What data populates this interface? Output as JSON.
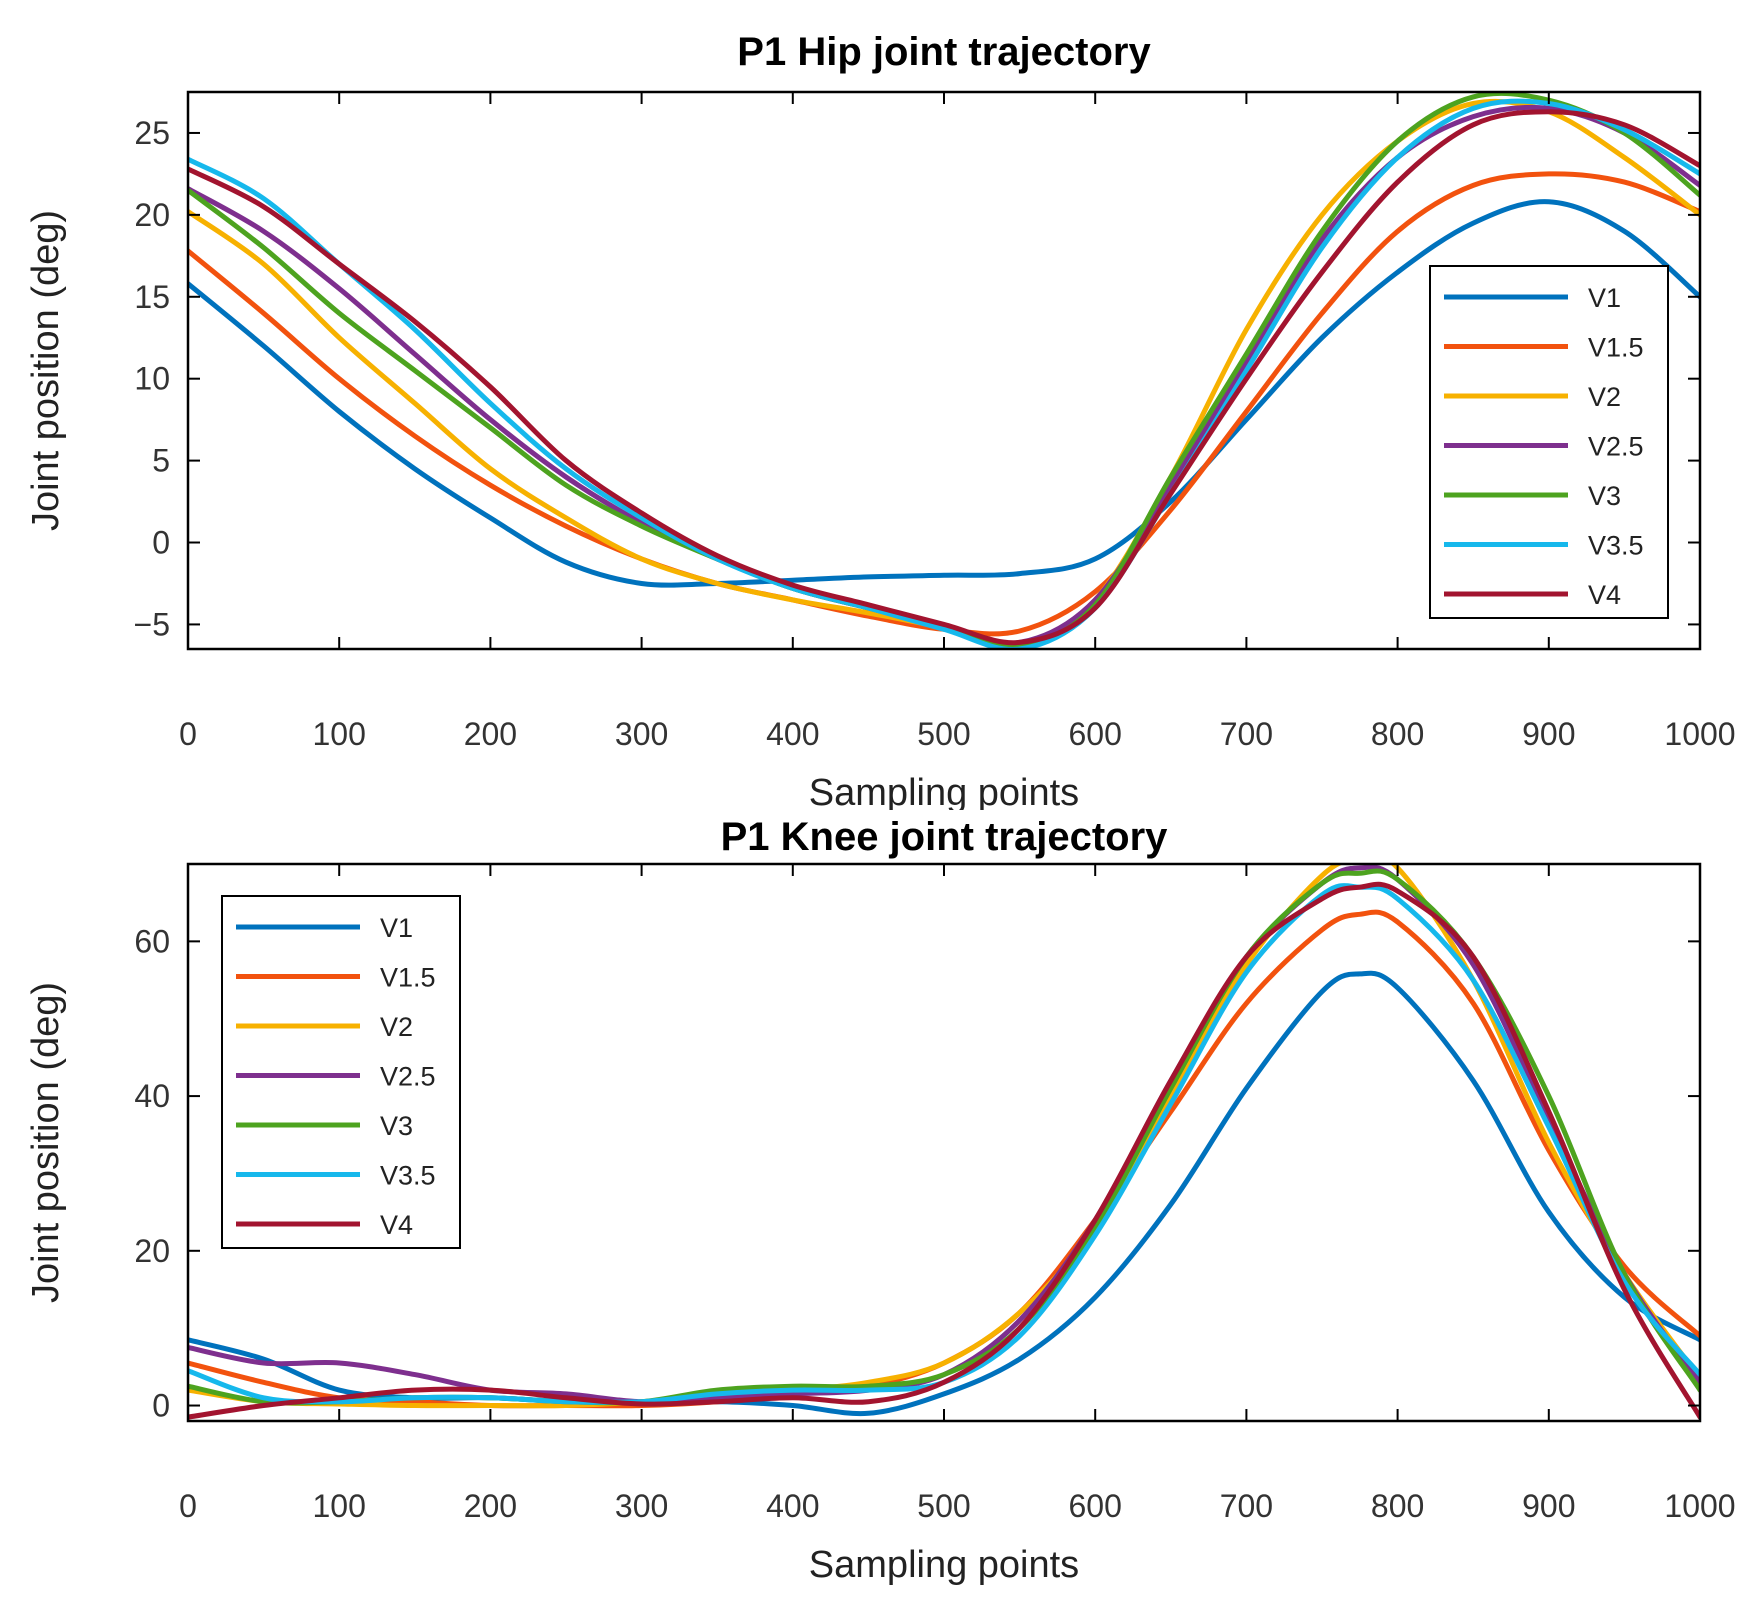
{
  "chart_data": [
    {
      "type": "line",
      "title": "P1 Hip joint trajectory",
      "xlabel": "Sampling points",
      "ylabel": "Joint position (deg)",
      "xlim": [
        0,
        1000
      ],
      "ylim": [
        -6.5,
        27.5
      ],
      "xticks": [
        0,
        100,
        200,
        300,
        400,
        500,
        600,
        700,
        800,
        900,
        1000
      ],
      "xtick_labels": [
        "0",
        "100",
        "200",
        "300",
        "400",
        "500",
        "600",
        "700",
        "800",
        "900",
        "1000"
      ],
      "yticks": [
        -5,
        0,
        5,
        10,
        15,
        20,
        25
      ],
      "ytick_labels": [
        "−5",
        "0",
        "5",
        "10",
        "15",
        "20",
        "25"
      ],
      "legend_position": "right",
      "x": [
        0,
        50,
        100,
        150,
        200,
        250,
        300,
        350,
        400,
        450,
        500,
        550,
        600,
        650,
        700,
        750,
        800,
        850,
        900,
        950,
        1000
      ],
      "series": [
        {
          "name": "V1",
          "color": "#0072BD",
          "values": [
            15.8,
            12,
            8,
            4.5,
            1.5,
            -1.2,
            -2.5,
            -2.5,
            -2.3,
            -2.1,
            -2,
            -1.9,
            -1,
            2.5,
            7.5,
            12.5,
            16.5,
            19.5,
            20.8,
            19,
            15
          ]
        },
        {
          "name": "V1.5",
          "color": "#F2520E",
          "values": [
            17.8,
            14,
            10,
            6.5,
            3.5,
            1,
            -1,
            -2.5,
            -3.5,
            -4.5,
            -5.3,
            -5.4,
            -3,
            2,
            8,
            14,
            19,
            21.8,
            22.5,
            22,
            20.2
          ]
        },
        {
          "name": "V2",
          "color": "#F7B100",
          "values": [
            20.2,
            17,
            12.5,
            8.5,
            4.5,
            1.5,
            -1,
            -2.5,
            -3.5,
            -4.3,
            -5.2,
            -6.2,
            -3.5,
            4,
            13,
            20,
            24.5,
            26.8,
            26.3,
            23.5,
            20
          ]
        },
        {
          "name": "V2.5",
          "color": "#7E2F8E",
          "values": [
            21.6,
            19,
            15.5,
            11.5,
            7.5,
            4,
            1.2,
            -1,
            -2.8,
            -4,
            -5.1,
            -6.1,
            -3.5,
            3.5,
            11,
            18.5,
            23.5,
            26,
            26.5,
            25,
            21.8
          ]
        },
        {
          "name": "V3",
          "color": "#4DA31F",
          "values": [
            21.5,
            18,
            14,
            10.5,
            7,
            3.5,
            1,
            -1,
            -2.8,
            -4,
            -5.2,
            -6.3,
            -3.8,
            4,
            11.5,
            19,
            24.5,
            27.2,
            27,
            25,
            21.2
          ]
        },
        {
          "name": "V3.5",
          "color": "#16B8EC",
          "values": [
            23.4,
            21,
            17,
            13,
            8.5,
            4.5,
            1.5,
            -1,
            -2.8,
            -4,
            -5.3,
            -6.5,
            -4,
            3,
            10.5,
            18,
            23.5,
            26.5,
            26.8,
            25.2,
            22.5
          ]
        },
        {
          "name": "V4",
          "color": "#A2142F",
          "values": [
            22.8,
            20.5,
            17,
            13.5,
            9.5,
            5,
            1.8,
            -0.8,
            -2.6,
            -3.8,
            -5,
            -6.1,
            -4,
            3,
            10,
            16.5,
            22,
            25.5,
            26.3,
            25.5,
            23
          ]
        }
      ]
    },
    {
      "type": "line",
      "title": "P1 Knee joint trajectory",
      "xlabel": "Sampling points",
      "ylabel": "Joint position (deg)",
      "xlim": [
        0,
        1000
      ],
      "ylim": [
        -2,
        70
      ],
      "xticks": [
        0,
        100,
        200,
        300,
        400,
        500,
        600,
        700,
        800,
        900,
        1000
      ],
      "xtick_labels": [
        "0",
        "100",
        "200",
        "300",
        "400",
        "500",
        "600",
        "700",
        "800",
        "900",
        "1000"
      ],
      "yticks": [
        0,
        20,
        40,
        60
      ],
      "ytick_labels": [
        "0",
        "20",
        "40",
        "60"
      ],
      "legend_position": "top-left",
      "x": [
        0,
        50,
        100,
        150,
        200,
        250,
        300,
        350,
        400,
        450,
        500,
        550,
        600,
        650,
        700,
        750,
        775,
        800,
        850,
        900,
        950,
        1000
      ],
      "series": [
        {
          "name": "V1",
          "color": "#0072BD",
          "values": [
            8.5,
            6,
            2,
            1,
            1,
            0.5,
            0.2,
            0.5,
            0,
            -1,
            1.5,
            6,
            14,
            26,
            41,
            53.5,
            55.8,
            54,
            42,
            25,
            14,
            8.5
          ]
        },
        {
          "name": "V1.5",
          "color": "#F2520E",
          "values": [
            5.5,
            3,
            1,
            0.5,
            0,
            0,
            0,
            0.5,
            1.5,
            2.5,
            5.5,
            12,
            24,
            38,
            52,
            61.5,
            63.5,
            62.5,
            52,
            33,
            18,
            9
          ]
        },
        {
          "name": "V2",
          "color": "#F7B100",
          "values": [
            2,
            0.5,
            0.2,
            0,
            0,
            0,
            0.5,
            1.5,
            2,
            3,
            5.5,
            12,
            23,
            40,
            57,
            68.5,
            70.5,
            69.5,
            55,
            34,
            17,
            3.5
          ]
        },
        {
          "name": "V2.5",
          "color": "#7E2F8E",
          "values": [
            7.5,
            5.5,
            5.5,
            4,
            2,
            1.5,
            0.5,
            1,
            1.5,
            2,
            4,
            11,
            24,
            42,
            58,
            67.5,
            69.5,
            68,
            57,
            37,
            17,
            3
          ]
        },
        {
          "name": "V3",
          "color": "#4DA31F",
          "values": [
            2.5,
            0.5,
            0.5,
            1,
            1,
            0.5,
            0.5,
            2,
            2.5,
            2.5,
            4,
            10,
            23,
            41,
            58,
            67.5,
            68.8,
            68,
            58,
            40,
            17,
            2
          ]
        },
        {
          "name": "V3.5",
          "color": "#16B8EC",
          "values": [
            4.5,
            1,
            0.5,
            1,
            1,
            0.5,
            0.5,
            1.5,
            2,
            2,
            3,
            9,
            22,
            39,
            56,
            66,
            67,
            65.5,
            55,
            36,
            16,
            4
          ]
        },
        {
          "name": "V4",
          "color": "#A2142F",
          "values": [
            -1.5,
            0,
            1,
            2,
            2,
            1,
            0.2,
            0.5,
            1,
            0.5,
            3,
            10,
            24,
            42,
            58,
            65.5,
            67,
            66.5,
            58,
            38,
            15,
            -1.5
          ]
        }
      ]
    }
  ]
}
